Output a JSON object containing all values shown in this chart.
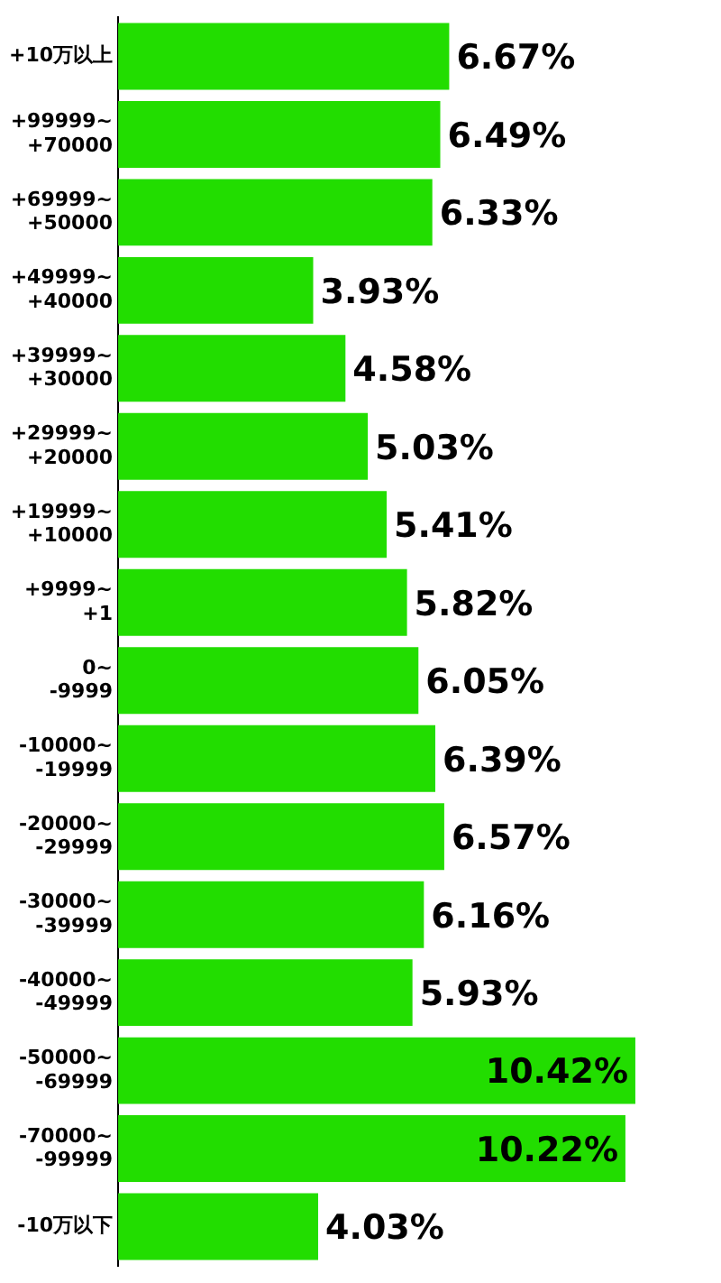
{
  "chart_data": {
    "type": "bar",
    "orientation": "horizontal",
    "categories": [
      "+10万以上",
      "+99999~\n+70000",
      "+69999~\n+50000",
      "+49999~\n+40000",
      "+39999~\n+30000",
      "+29999~\n+20000",
      "+19999~\n+10000",
      "+9999~\n+1",
      "0~\n-9999",
      "-10000~\n-19999",
      "-20000~\n-29999",
      "-30000~\n-39999",
      "-40000~\n-49999",
      "-50000~\n-69999",
      "-70000~\n-99999",
      "-10万以下"
    ],
    "values": [
      6.67,
      6.49,
      6.33,
      3.93,
      4.58,
      5.03,
      5.41,
      5.82,
      6.05,
      6.39,
      6.57,
      6.16,
      5.93,
      10.42,
      10.22,
      4.03
    ],
    "value_labels": [
      "6.67%",
      "6.49%",
      "6.33%",
      "3.93%",
      "4.58%",
      "5.03%",
      "5.41%",
      "5.82%",
      "6.05%",
      "6.39%",
      "6.57%",
      "6.16%",
      "5.93%",
      "10.42%",
      "10.22%",
      "4.03%"
    ],
    "color": "#22dd00",
    "tick_labels": "y",
    "grid": false,
    "legend": false
  }
}
